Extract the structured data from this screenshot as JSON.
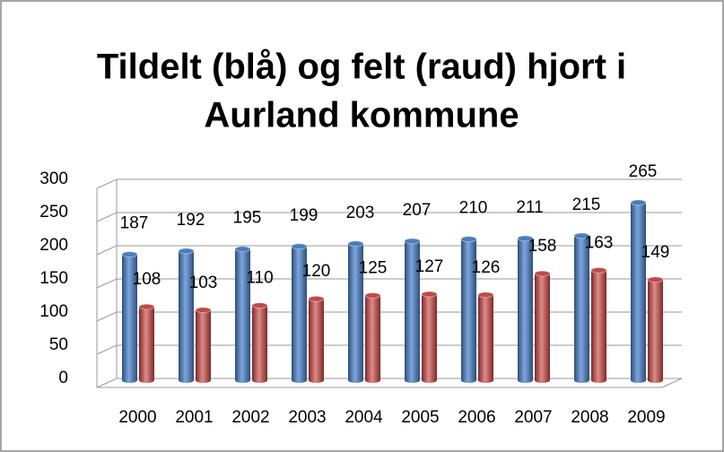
{
  "chart_data": {
    "type": "bar",
    "title": [
      "Tildelt (blå) og felt (raud) hjort i",
      "Aurland kommune"
    ],
    "categories": [
      "2000",
      "2001",
      "2002",
      "2003",
      "2004",
      "2005",
      "2006",
      "2007",
      "2008",
      "2009"
    ],
    "series": [
      {
        "color": "#4a7ebb",
        "values": [
          187,
          192,
          195,
          199,
          203,
          207,
          210,
          211,
          215,
          265
        ]
      },
      {
        "color": "#be4b48",
        "values": [
          108,
          103,
          110,
          120,
          125,
          127,
          126,
          158,
          163,
          149
        ]
      }
    ],
    "ylim": [
      0,
      300
    ],
    "yticks": [
      0,
      50,
      100,
      150,
      200,
      250,
      300
    ],
    "grid": true
  }
}
